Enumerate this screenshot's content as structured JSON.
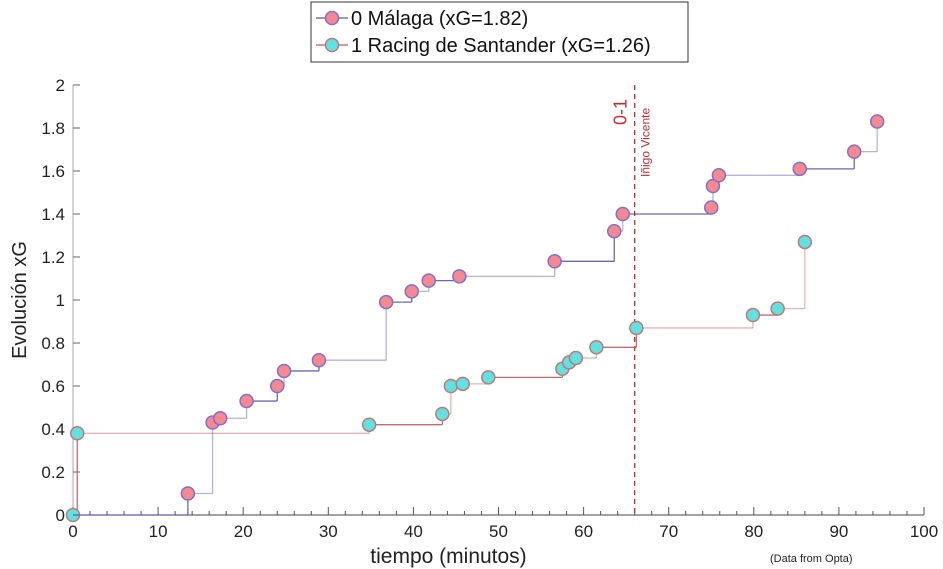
{
  "chart_data": {
    "type": "line",
    "step": true,
    "title": "",
    "xlabel": "tiempo (minutos)",
    "ylabel": "Evolución xG",
    "xlim": [
      0,
      100
    ],
    "ylim": [
      0,
      2
    ],
    "xticks": [
      0,
      10,
      20,
      30,
      40,
      50,
      60,
      70,
      80,
      90,
      100
    ],
    "xtick_labels": [
      "0",
      "10",
      "20",
      "30",
      "40",
      "50",
      "60",
      "70",
      "80",
      "90",
      "100"
    ],
    "yticks": [
      0,
      0.2,
      0.4,
      0.6,
      0.8,
      1,
      1.2,
      1.4,
      1.6,
      1.8,
      2
    ],
    "ytick_labels": [
      "0",
      "0.2",
      "0.4",
      "0.6",
      "0.8",
      "1",
      "1.2",
      "1.4",
      "1.6",
      "1.8",
      "2"
    ],
    "grid": false,
    "legend_position": "top-center",
    "source_note": "(Data from Opta)",
    "series": [
      {
        "name": "0 Málaga (xG=1.82)",
        "line_color": "#5b55b4",
        "marker_color": "#f7888f",
        "marker_edge": "#7d6fd3",
        "x": [
          0,
          13.5,
          16.4,
          17.3,
          20.4,
          24.0,
          24.8,
          28.9,
          36.8,
          39.8,
          41.8,
          45.4,
          56.6,
          63.6,
          64.6,
          75.0,
          75.2,
          75.9,
          85.4,
          91.8,
          94.5
        ],
        "y": [
          0,
          0.1,
          0.43,
          0.45,
          0.53,
          0.6,
          0.67,
          0.72,
          0.99,
          1.04,
          1.09,
          1.11,
          1.18,
          1.32,
          1.4,
          1.43,
          1.53,
          1.58,
          1.61,
          1.69,
          1.83
        ]
      },
      {
        "name": "1 Racing de Santander (xG=1.26)",
        "line_color": "#c05a5e",
        "marker_color": "#5fe3e0",
        "marker_edge": "#c0777a",
        "x": [
          0,
          0.5,
          34.8,
          43.4,
          44.4,
          45.8,
          48.8,
          57.5,
          58.3,
          59.1,
          61.5,
          66.2,
          79.9,
          82.8,
          86.0
        ],
        "y": [
          0,
          0.38,
          0.42,
          0.47,
          0.6,
          0.61,
          0.64,
          0.68,
          0.71,
          0.73,
          0.78,
          0.87,
          0.93,
          0.96,
          1.27
        ]
      }
    ],
    "annotations": [
      {
        "type": "vline",
        "x": 66,
        "color": "#c8282e",
        "score_label": "0-1",
        "player_label": "Iñigo Vicente"
      }
    ]
  }
}
